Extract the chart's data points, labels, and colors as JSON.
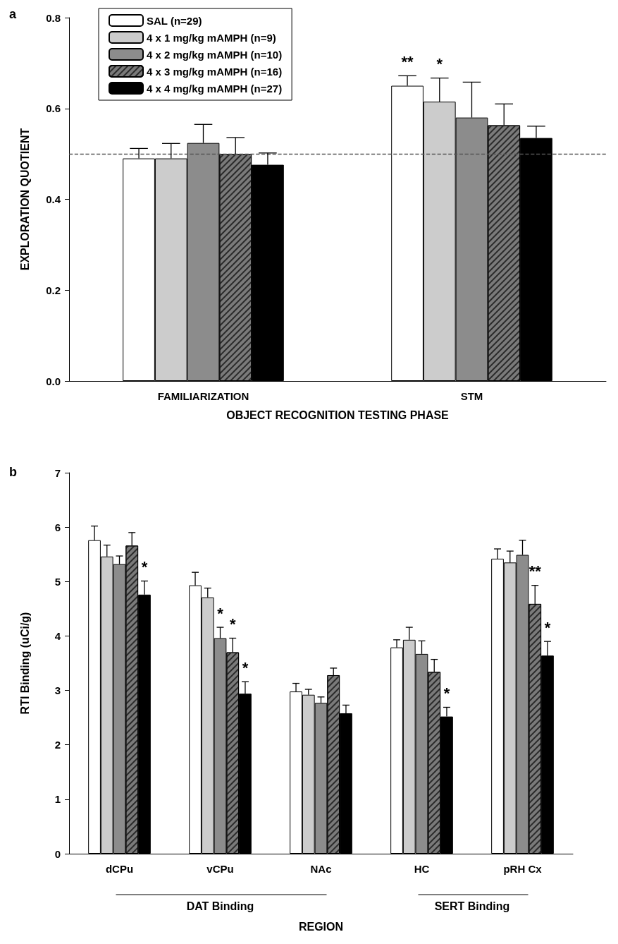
{
  "chart_data": [
    {
      "type": "bar",
      "title": "a",
      "xlabel": "OBJECT RECOGNITION TESTING PHASE",
      "ylabel": "EXPLORATION QUOTIENT",
      "categories": [
        "FAMILIARIZATION",
        "STM"
      ],
      "ylim": [
        0,
        0.8
      ],
      "yticks": [
        {
          "value": 0,
          "label": "0.0"
        },
        {
          "value": 0.2,
          "label": "0.2"
        },
        {
          "value": 0.4,
          "label": "0.4"
        },
        {
          "value": 0.6,
          "label": "0.6"
        },
        {
          "value": 0.8,
          "label": "0.8"
        }
      ],
      "legend": "top left",
      "grid": false,
      "series": [
        {
          "name": "SAL (n=29)",
          "color": "#ffffff",
          "values": [
            0.49,
            0.65
          ],
          "errors": [
            [
              0.49,
              0.512
            ],
            [
              0.65,
              0.672
            ]
          ]
        },
        {
          "name": "4 x 1 mg/kg mAMPH (n=9)",
          "color": "#cccccc",
          "values": [
            0.49,
            0.615
          ],
          "errors": [
            [
              0.49,
              0.523
            ],
            [
              0.615,
              0.667
            ]
          ]
        },
        {
          "name": "4 x 2 mg/kg mAMPH (n=10)",
          "color": "#8c8c8c",
          "values": [
            0.524,
            0.58
          ],
          "errors": [
            [
              0.524,
              0.565
            ],
            [
              0.58,
              0.658
            ]
          ]
        },
        {
          "name": "4 x 3 mg/kg mAMPH (n=16)",
          "color": "#7a7a7a",
          "values": [
            0.5,
            0.563
          ],
          "errors": [
            [
              0.5,
              0.536
            ],
            [
              0.563,
              0.61
            ]
          ]
        },
        {
          "name": "4 x 4 mg/kg mAMPH (n=27)",
          "color": "#000000",
          "values": [
            0.476,
            0.535
          ],
          "errors": [
            [
              0.476,
              0.502
            ],
            [
              0.535,
              0.561
            ]
          ]
        }
      ],
      "ref_lines": [
        {
          "axis": "y",
          "value": 0.5,
          "line_style": "dashed",
          "color": "#555555"
        }
      ],
      "annotations": [
        "**",
        "*"
      ]
    },
    {
      "type": "bar",
      "title": "b",
      "xlabel": "REGION",
      "ylabel": "RTI Binding (uCi/g)",
      "categories": [
        "dCPu",
        "vCPu",
        "NAc",
        "HC",
        "pRH Cx"
      ],
      "ylim": [
        0,
        7
      ],
      "yticks": [
        0,
        1,
        2,
        3,
        4,
        5,
        6,
        7
      ],
      "legend": false,
      "grid": false,
      "series": [
        {
          "color": "#ffffff",
          "values": [
            5.76,
            4.93,
            2.98,
            3.79,
            5.42
          ],
          "errors": [
            [
              5.76,
              6.02
            ],
            [
              4.93,
              5.17
            ],
            [
              2.98,
              3.13
            ],
            [
              3.79,
              3.93
            ],
            [
              5.42,
              5.6
            ]
          ]
        },
        {
          "color": "#cccccc",
          "values": [
            5.46,
            4.71,
            2.92,
            3.93,
            5.35
          ],
          "errors": [
            [
              5.46,
              5.67
            ],
            [
              4.71,
              4.88
            ],
            [
              2.92,
              3.02
            ],
            [
              3.93,
              4.16
            ],
            [
              5.35,
              5.56
            ]
          ]
        },
        {
          "color": "#8c8c8c",
          "values": [
            5.32,
            3.96,
            2.77,
            3.67,
            5.49
          ],
          "errors": [
            [
              5.32,
              5.47
            ],
            [
              3.96,
              4.16
            ],
            [
              2.77,
              2.88
            ],
            [
              3.67,
              3.91
            ],
            [
              5.49,
              5.76
            ]
          ]
        },
        {
          "color": "#7a7a7a",
          "values": [
            5.66,
            3.7,
            3.28,
            3.34,
            4.59
          ],
          "errors": [
            [
              5.66,
              5.9
            ],
            [
              3.7,
              3.96
            ],
            [
              3.28,
              3.41
            ],
            [
              3.34,
              3.57
            ],
            [
              4.59,
              4.93
            ]
          ]
        },
        {
          "color": "#000000",
          "values": [
            4.76,
            2.94,
            2.58,
            2.52,
            3.64
          ],
          "errors": [
            [
              4.76,
              5.01
            ],
            [
              2.94,
              3.16
            ],
            [
              2.58,
              2.73
            ],
            [
              2.52,
              2.69
            ],
            [
              3.64,
              3.9
            ]
          ]
        }
      ],
      "annotations": [
        "*",
        "*",
        "*",
        "*",
        "*",
        "**",
        "*",
        "DAT Binding",
        "SERT Binding"
      ]
    }
  ]
}
